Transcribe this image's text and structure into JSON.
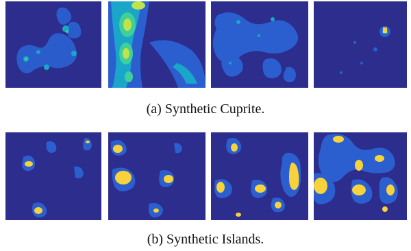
{
  "captions": {
    "a": "(a) Synthetic Cuprite.",
    "b": "(b) Synthetic Islands."
  },
  "colors": {
    "background": "#2c2d8c",
    "low": "#2b5fd0",
    "mid": "#1aa6c8",
    "high": "#3ecf9a",
    "peak": "#f7d23b"
  },
  "figures": {
    "cuprite": [
      "abundance-map-1",
      "abundance-map-2",
      "abundance-map-3",
      "abundance-map-4"
    ],
    "islands": [
      "abundance-map-1",
      "abundance-map-2",
      "abundance-map-3",
      "abundance-map-4"
    ]
  }
}
